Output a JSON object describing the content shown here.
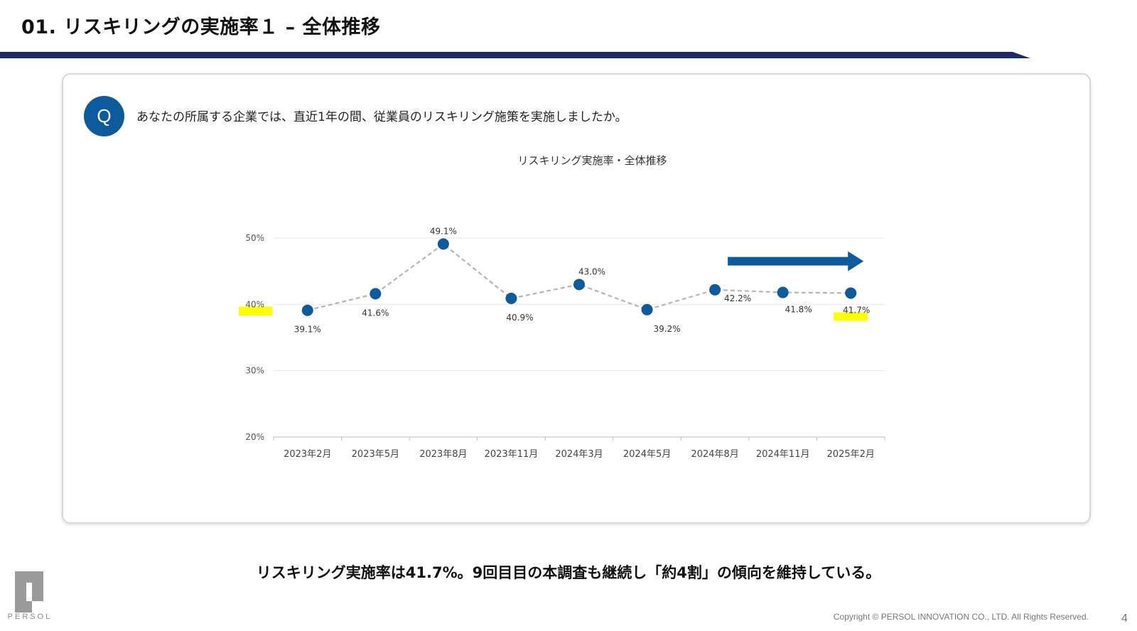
{
  "header": {
    "title": "01. リスキリングの実施率１ – 全体推移"
  },
  "question": {
    "badge": "Q",
    "text": "あなたの所属する企業では、直近1年の間、従業員のリスキリング施策を実施しましたか。"
  },
  "chart_data": {
    "type": "line",
    "title": "リスキリング実施率・全体推移",
    "xlabel": "",
    "ylabel": "",
    "categories": [
      "2023年2月",
      "2023年5月",
      "2023年8月",
      "2023年11月",
      "2024年3月",
      "2024年5月",
      "2024年8月",
      "2024年11月",
      "2025年2月"
    ],
    "series": [
      {
        "values": [
          39.1,
          41.6,
          49.1,
          40.9,
          43.0,
          39.2,
          42.2,
          41.8,
          41.7
        ],
        "data_labels": [
          "39.1%",
          "41.6%",
          "49.1%",
          "40.9%",
          "43.0%",
          "39.2%",
          "42.2%",
          "41.8%",
          "41.7%"
        ]
      }
    ],
    "ylim": [
      20,
      50
    ],
    "y_ticks": [
      20,
      30,
      40,
      50
    ],
    "y_tick_labels": [
      "20%",
      "30%",
      "40%",
      "50%"
    ],
    "grid": true,
    "legend": "none",
    "highlights": [
      "40%",
      "41.7%"
    ],
    "annotation": "trend-arrow-right"
  },
  "summary": "リスキリング実施率は41.7%。9回目目の本調査も継続し「約4割」の傾向を維持している。",
  "footer": {
    "logo_text": "PERSOL",
    "copyright": "Copyright © PERSOL INNOVATION CO., LTD. All Rights Reserved.",
    "page_number": "4"
  },
  "colors": {
    "title_bar": "#1f2a6b",
    "marker": "#0d5a9c",
    "line": "#b5b5b5",
    "highlight": "#ffff00",
    "grid": "#e6e6e6"
  }
}
